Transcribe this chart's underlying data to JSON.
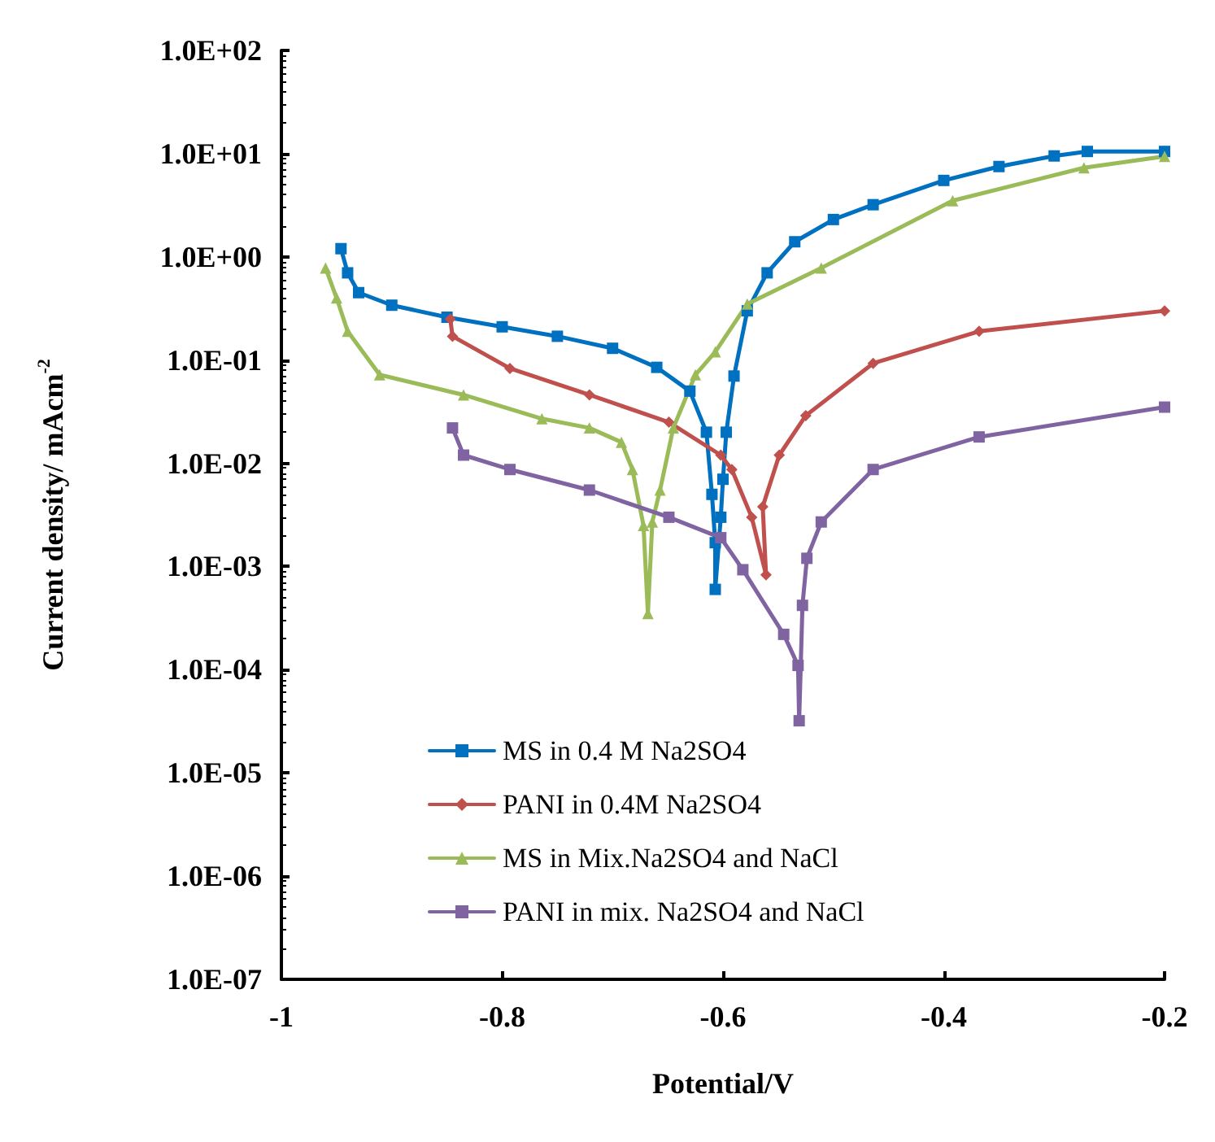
{
  "chart_data": {
    "type": "line",
    "xlabel": "Potential/V",
    "ylabel": "Current density/ mAcm$^{-2}$",
    "log": "y",
    "grid": false,
    "legend": "bottom left",
    "line_style": "solid",
    "xlim": [
      -1,
      -0.2
    ],
    "xticks": [
      -1,
      -0.8,
      -0.6,
      -0.4,
      -0.2
    ],
    "ylim": [
      1e-07,
      100
    ],
    "yticks": [
      {
        "value": 100,
        "label": "1.0E+02"
      },
      {
        "value": 10,
        "label": "1.0E+01"
      },
      {
        "value": 1,
        "label": "1.0E+00"
      },
      {
        "value": 0.1,
        "label": "1.0E-01"
      },
      {
        "value": 0.01,
        "label": "1.0E-02"
      },
      {
        "value": 0.001,
        "label": "1.0E-03"
      },
      {
        "value": 0.0001,
        "label": "1.0E-04"
      },
      {
        "value": 1e-05,
        "label": "1.0E-05"
      },
      {
        "value": 1e-06,
        "label": "1.0E-06"
      },
      {
        "value": 1e-07,
        "label": "1.0E-07"
      }
    ],
    "series": [
      {
        "name": "MS in 0.4 M Na2SO4",
        "color": "#0070c0",
        "marker": "square",
        "x": [
          -0.946,
          -0.94,
          -0.93,
          -0.9,
          -0.85,
          -0.8,
          -0.75,
          -0.7,
          -0.66,
          -0.63,
          -0.615,
          -0.61,
          -0.607,
          -0.607,
          -0.602,
          -0.6,
          -0.597,
          -0.59,
          -0.578,
          -0.56,
          -0.535,
          -0.5,
          -0.464,
          -0.4,
          -0.35,
          -0.3,
          -0.27,
          -0.2
        ],
        "values": [
          1.2,
          0.7,
          0.45,
          0.34,
          0.26,
          0.21,
          0.17,
          0.13,
          0.085,
          0.05,
          0.02,
          0.005,
          0.0017,
          0.0006,
          0.003,
          0.007,
          0.02,
          0.07,
          0.3,
          0.7,
          1.4,
          2.3,
          3.2,
          5.5,
          7.5,
          9.5,
          10.5,
          10.5
        ]
      },
      {
        "name": "PANI in 0.4M Na2SO4",
        "color": "#c0504d",
        "marker": "diamond",
        "x": [
          -0.847,
          -0.845,
          -0.793,
          -0.721,
          -0.649,
          -0.602,
          -0.592,
          -0.574,
          -0.561,
          -0.564,
          -0.549,
          -0.525,
          -0.464,
          -0.368,
          -0.2
        ],
        "values": [
          0.25,
          0.17,
          0.083,
          0.046,
          0.025,
          0.012,
          0.0087,
          0.003,
          0.00083,
          0.0038,
          0.012,
          0.029,
          0.093,
          0.19,
          0.3
        ]
      },
      {
        "name": "MS in Mix.Na2SO4 and NaCl",
        "color": "#9bbb59",
        "marker": "triangle",
        "x": [
          -0.96,
          -0.95,
          -0.94,
          -0.911,
          -0.835,
          -0.764,
          -0.721,
          -0.692,
          -0.682,
          -0.672,
          -0.668,
          -0.664,
          -0.657,
          -0.645,
          -0.625,
          -0.607,
          -0.578,
          -0.511,
          -0.392,
          -0.273,
          -0.2
        ],
        "values": [
          0.78,
          0.4,
          0.19,
          0.072,
          0.046,
          0.027,
          0.022,
          0.016,
          0.0087,
          0.0025,
          0.00035,
          0.0027,
          0.0055,
          0.022,
          0.072,
          0.12,
          0.35,
          0.78,
          3.5,
          7.3,
          9.4
        ]
      },
      {
        "name": "PANI in mix. Na2SO4 and NaCl",
        "color": "#8064a2",
        "marker": "square",
        "x": [
          -0.845,
          -0.835,
          -0.793,
          -0.721,
          -0.649,
          -0.602,
          -0.582,
          -0.545,
          -0.532,
          -0.531,
          -0.528,
          -0.524,
          -0.511,
          -0.464,
          -0.368,
          -0.2
        ],
        "values": [
          0.022,
          0.012,
          0.0087,
          0.0055,
          0.003,
          0.0019,
          0.00093,
          0.00022,
          0.00011,
          3.2e-05,
          0.00042,
          0.0012,
          0.0027,
          0.0087,
          0.018,
          0.035
        ]
      }
    ]
  }
}
